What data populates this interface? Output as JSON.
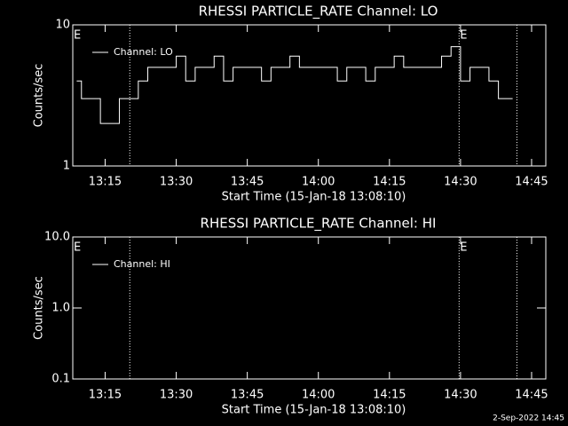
{
  "chart_data": [
    {
      "type": "line",
      "title": "RHESSI PARTICLE_RATE Channel: LO",
      "xlabel": "Start Time (15-Jan-18 13:08:10)",
      "ylabel": "Counts/sec",
      "log_y": true,
      "xlim": [
        788.17,
        888
      ],
      "ylim": [
        1,
        10
      ],
      "xticks": [
        {
          "value": 795,
          "label": "13:15"
        },
        {
          "value": 810,
          "label": "13:30"
        },
        {
          "value": 825,
          "label": "13:45"
        },
        {
          "value": 840,
          "label": "14:00"
        },
        {
          "value": 855,
          "label": "14:15"
        },
        {
          "value": 870,
          "label": "14:30"
        },
        {
          "value": 885,
          "label": "14:45"
        }
      ],
      "yticks": [
        1,
        10
      ],
      "vlines": [
        800.2,
        869.7,
        881.9
      ],
      "annotations": [
        {
          "text": "E",
          "x": 788.17
        },
        {
          "text": "E",
          "x": 869.7
        }
      ],
      "series": [
        {
          "name": "Channel: LO",
          "color": "#ffffff",
          "x": [
            789,
            791,
            793,
            795,
            797,
            799,
            801,
            803,
            805,
            807,
            809,
            811,
            813,
            815,
            817,
            819,
            821,
            823,
            825,
            827,
            829,
            831,
            833,
            835,
            837,
            839,
            841,
            843,
            845,
            847,
            849,
            851,
            853,
            855,
            857,
            859,
            861,
            863,
            865,
            867,
            869,
            871,
            873,
            875,
            877,
            879,
            881
          ],
          "values": [
            4,
            3,
            3,
            2,
            2,
            3,
            3,
            4,
            5,
            5,
            5,
            6,
            4,
            5,
            5,
            6,
            4,
            5,
            5,
            5,
            4,
            5,
            5,
            6,
            5,
            5,
            5,
            5,
            4,
            5,
            5,
            4,
            5,
            5,
            6,
            5,
            5,
            5,
            5,
            6,
            7,
            4,
            5,
            5,
            4,
            3,
            3
          ]
        }
      ]
    },
    {
      "type": "line",
      "title": "RHESSI PARTICLE_RATE Channel: HI",
      "xlabel": "Start Time (15-Jan-18 13:08:10)",
      "ylabel": "Counts/sec",
      "log_y": true,
      "xlim": [
        788.17,
        888
      ],
      "ylim": [
        0.1,
        10
      ],
      "xticks": [
        {
          "value": 795,
          "label": "13:15"
        },
        {
          "value": 810,
          "label": "13:30"
        },
        {
          "value": 825,
          "label": "13:45"
        },
        {
          "value": 840,
          "label": "14:00"
        },
        {
          "value": 855,
          "label": "14:15"
        },
        {
          "value": 870,
          "label": "14:30"
        },
        {
          "value": 885,
          "label": "14:45"
        }
      ],
      "yticks": [
        0.1,
        {
          "value": 1,
          "label": "1.0"
        },
        {
          "value": 10,
          "label": "10.0"
        }
      ],
      "vlines": [
        800.2,
        869.7,
        881.9
      ],
      "annotations": [
        {
          "text": "E",
          "x": 788.17
        },
        {
          "text": "E",
          "x": 869.7
        }
      ],
      "series": [
        {
          "name": "Channel: HI",
          "color": "#ffffff",
          "x": [],
          "values": []
        }
      ]
    }
  ],
  "footer": "2-Sep-2022 14:45"
}
